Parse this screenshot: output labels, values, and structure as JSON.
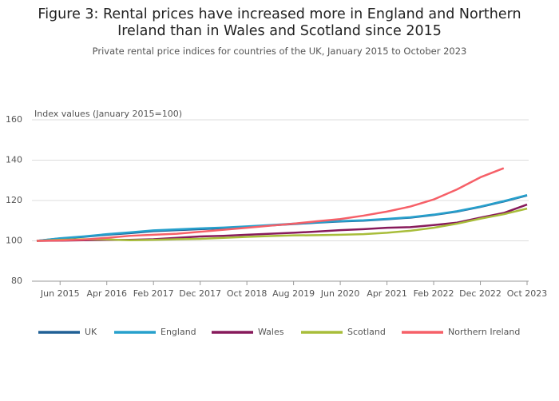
{
  "chart_data": {
    "type": "line",
    "title": "Figure 3: Rental prices have increased more in England and Northern Ireland than in Wales and Scotland since 2015",
    "subtitle": "Private rental price indices for countries of the UK, January 2015 to October 2023",
    "y_label": "Index values (January 2015=100)",
    "x": [
      "Jan 2015",
      "Jun 2015",
      "Nov 2015",
      "Apr 2016",
      "Sep 2016",
      "Feb 2017",
      "Jul 2017",
      "Dec 2017",
      "May 2018",
      "Oct 2018",
      "Mar 2019",
      "Aug 2019",
      "Jan 2020",
      "Jun 2020",
      "Nov 2020",
      "Apr 2021",
      "Sep 2021",
      "Feb 2022",
      "Jul 2022",
      "Dec 2022",
      "May 2023",
      "Oct 2023"
    ],
    "xlim": [
      "Jan 2015",
      "Oct 2023"
    ],
    "xticks": [
      "Jun 2015",
      "Apr 2016",
      "Feb 2017",
      "Dec 2017",
      "Oct 2018",
      "Aug 2019",
      "Jun 2020",
      "Apr 2021",
      "Feb 2022",
      "Dec 2022",
      "Oct 2023"
    ],
    "ylim": [
      80,
      160
    ],
    "yticks": [
      80,
      100,
      120,
      140,
      160
    ],
    "grid": true,
    "legend": "bottom",
    "series": [
      {
        "name": "UK",
        "color": "#206095",
        "values": [
          100,
          101.2,
          102,
          103,
          103.8,
          104.8,
          105.3,
          105.8,
          106.3,
          107,
          107.6,
          108.3,
          109,
          109.6,
          110,
          110.7,
          111.5,
          112.8,
          114.5,
          116.8,
          119.5,
          122.5
        ]
      },
      {
        "name": "England",
        "color": "#27a0cc",
        "values": [
          100,
          101.3,
          102.2,
          103.3,
          104.2,
          105.2,
          105.7,
          106.2,
          106.6,
          107.2,
          107.8,
          108.5,
          109.2,
          109.8,
          110.2,
          110.9,
          111.7,
          113,
          114.7,
          117,
          119.7,
          122.7
        ]
      },
      {
        "name": "Wales",
        "color": "#871a5b",
        "values": [
          100,
          100.1,
          100.3,
          100.5,
          100.5,
          100.8,
          101.5,
          102.2,
          102.5,
          103,
          103.5,
          104,
          104.6,
          105.3,
          105.8,
          106.5,
          106.8,
          107.8,
          109,
          111.5,
          113.8,
          118
        ]
      },
      {
        "name": "Scotland",
        "color": "#a8bd3a",
        "values": [
          100,
          100.5,
          100.8,
          100.7,
          100.3,
          100.5,
          100.8,
          101,
          101.5,
          102,
          102.4,
          102.7,
          102.8,
          103,
          103.3,
          104,
          105,
          106.5,
          108.5,
          111,
          113.2,
          116
        ]
      },
      {
        "name": "Northern Ireland",
        "color": "#f66068",
        "values": [
          100,
          100.2,
          100.6,
          101.5,
          102.5,
          103,
          103.5,
          104.5,
          105.5,
          106.5,
          107.5,
          108.5,
          109.7,
          110.8,
          112.5,
          114.5,
          117,
          120.5,
          125.5,
          131.5,
          136,
          null
        ]
      }
    ]
  }
}
